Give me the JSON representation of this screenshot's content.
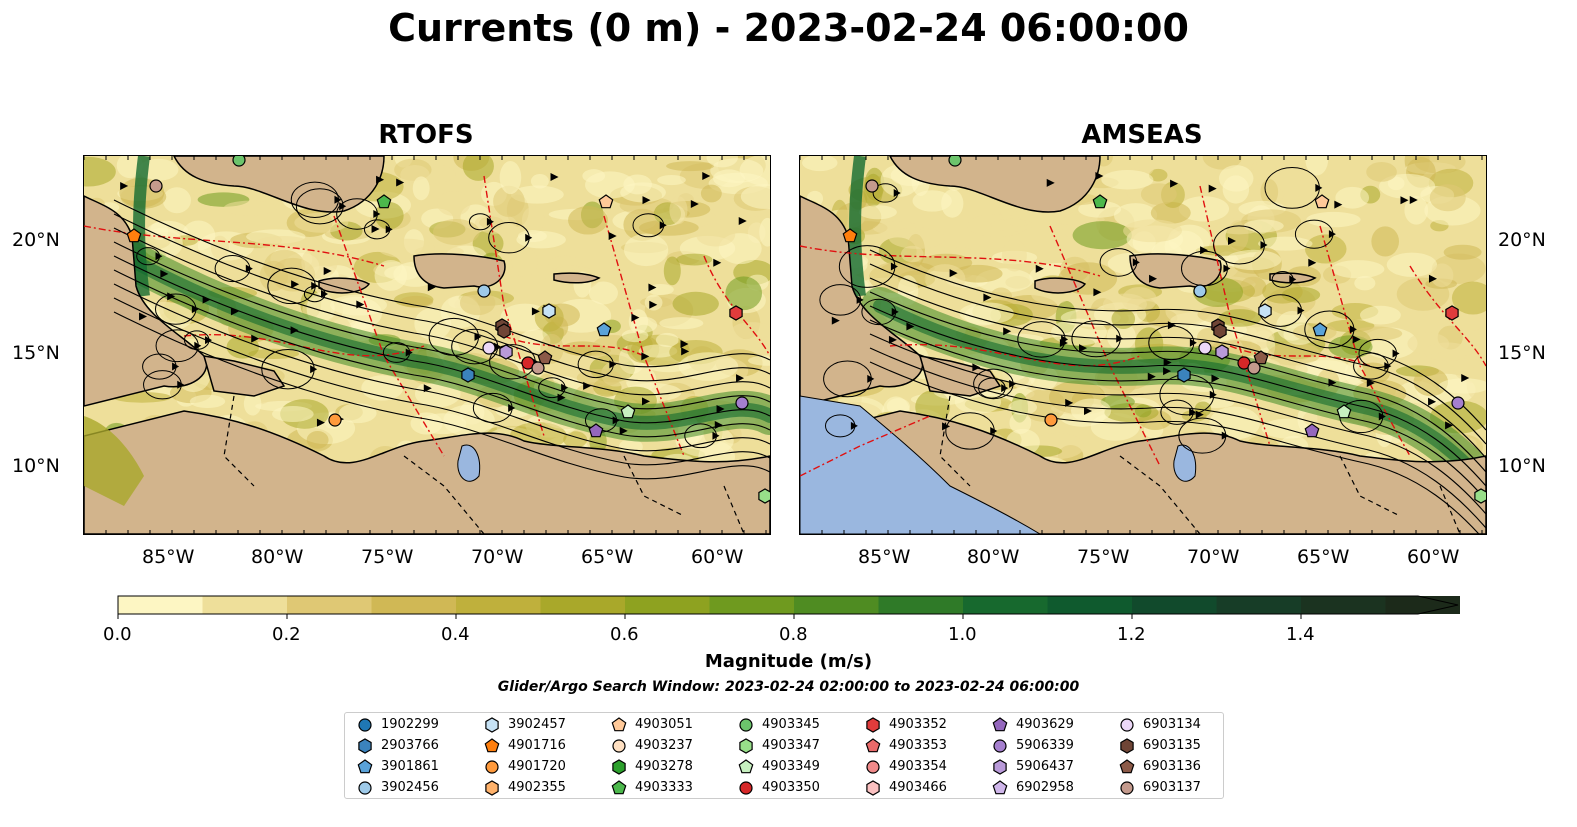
{
  "title": "Currents (0 m) - 2023-02-24 06:00:00",
  "panels": [
    {
      "title": "RTOFS"
    },
    {
      "title": "AMSEAS"
    }
  ],
  "lat_labels": [
    "20°N",
    "15°N",
    "10°N"
  ],
  "lon_labels": [
    "85°W",
    "80°W",
    "75°W",
    "70°W",
    "65°W",
    "60°W"
  ],
  "colorbar": {
    "label": "Magnitude (m/s)",
    "ticks": [
      "0.0",
      "0.2",
      "0.4",
      "0.6",
      "0.8",
      "1.0",
      "1.2",
      "1.4"
    ],
    "colors": [
      "#fdf6c3",
      "#eedf9a",
      "#dfc874",
      "#d0b855",
      "#bfb03c",
      "#a9a82a",
      "#8ea220",
      "#6f9a1f",
      "#4f8c22",
      "#2f7a28",
      "#17692e",
      "#0f5a2e",
      "#114a2c",
      "#173d27",
      "#1b3320",
      "#1c2a1a"
    ]
  },
  "search_window": "Glider/Argo Search Window: 2023-02-24 02:00:00 to 2023-02-24 06:00:00",
  "legend": [
    {
      "id": "1902299",
      "shape": "circle",
      "color": "#1f77b4"
    },
    {
      "id": "2903766",
      "shape": "hexagon",
      "color": "#3b83bd"
    },
    {
      "id": "3901861",
      "shape": "pentagon",
      "color": "#5aa2d8"
    },
    {
      "id": "3902456",
      "shape": "circle",
      "color": "#9ecae9"
    },
    {
      "id": "3902457",
      "shape": "hexagon",
      "color": "#c6e2f5"
    },
    {
      "id": "4901716",
      "shape": "pentagon",
      "color": "#ff7f0e"
    },
    {
      "id": "4901720",
      "shape": "circle",
      "color": "#ff9a3c"
    },
    {
      "id": "4902355",
      "shape": "hexagon",
      "color": "#ffb26b"
    },
    {
      "id": "4903051",
      "shape": "pentagon",
      "color": "#ffc999"
    },
    {
      "id": "4903237",
      "shape": "circle",
      "color": "#ffe0c2"
    },
    {
      "id": "4903278",
      "shape": "hexagon",
      "color": "#2ca02c"
    },
    {
      "id": "4903333",
      "shape": "pentagon",
      "color": "#4cb84c"
    },
    {
      "id": "4903345",
      "shape": "circle",
      "color": "#6cc46c"
    },
    {
      "id": "4903347",
      "shape": "hexagon",
      "color": "#98df8a"
    },
    {
      "id": "4903349",
      "shape": "pentagon",
      "color": "#c7f0c0"
    },
    {
      "id": "4903350",
      "shape": "circle",
      "color": "#d62728"
    },
    {
      "id": "4903352",
      "shape": "hexagon",
      "color": "#e03c3c"
    },
    {
      "id": "4903353",
      "shape": "pentagon",
      "color": "#ea6a6a"
    },
    {
      "id": "4903354",
      "shape": "circle",
      "color": "#f08a8a"
    },
    {
      "id": "4903466",
      "shape": "hexagon",
      "color": "#fbc1c1"
    },
    {
      "id": "4903629",
      "shape": "pentagon",
      "color": "#9467bd"
    },
    {
      "id": "5906339",
      "shape": "circle",
      "color": "#a57fce"
    },
    {
      "id": "5906437",
      "shape": "hexagon",
      "color": "#b99ad9"
    },
    {
      "id": "6902958",
      "shape": "pentagon",
      "color": "#cfb6ea"
    },
    {
      "id": "6903134",
      "shape": "circle",
      "color": "#ecd8f7"
    },
    {
      "id": "6903135",
      "shape": "hexagon",
      "color": "#6f4536"
    },
    {
      "id": "6903136",
      "shape": "pentagon",
      "color": "#8c5a48"
    },
    {
      "id": "6903137",
      "shape": "circle",
      "color": "#c49a8d"
    }
  ]
}
